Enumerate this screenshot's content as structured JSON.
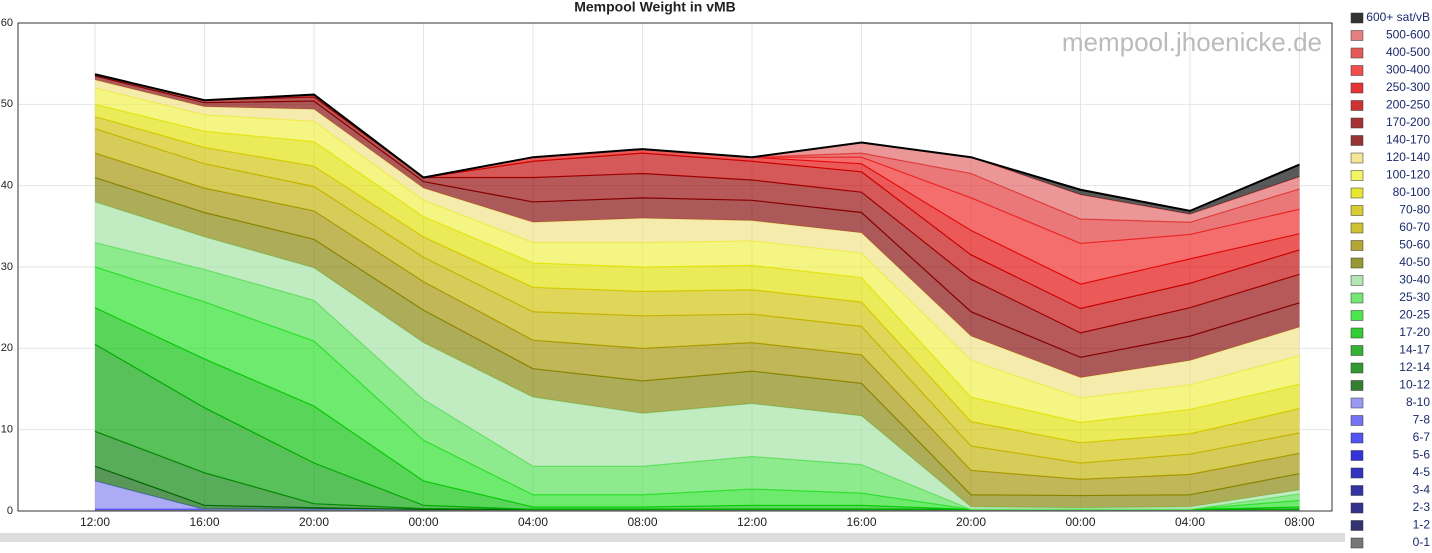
{
  "chart_data": {
    "type": "stacked-area",
    "title": "Mempool Weight in vMB",
    "watermark": "mempool.jhoenicke.de",
    "categories": [
      "12:00",
      "16:00",
      "20:00",
      "00:00",
      "04:00",
      "08:00",
      "12:00",
      "16:00",
      "20:00",
      "00:00",
      "04:00",
      "08:00"
    ],
    "ylim": [
      0,
      60
    ],
    "yticks": [
      0,
      10,
      20,
      30,
      40,
      50,
      60
    ],
    "grid": true,
    "legend": "right",
    "series": [
      {
        "name": "0-1",
        "color": "#555555",
        "values": [
          0.2,
          0.2,
          0.2,
          0.2,
          0.2,
          0.2,
          0.2,
          0.2,
          0.2,
          0.2,
          0.2,
          0.2
        ]
      },
      {
        "name": "1-2",
        "color": "#000050",
        "values": [
          0,
          0,
          0,
          0,
          0,
          0,
          0,
          0,
          0,
          0,
          0,
          0
        ]
      },
      {
        "name": "2-3",
        "color": "#000070",
        "values": [
          0,
          0,
          0,
          0,
          0,
          0,
          0,
          0,
          0,
          0,
          0,
          0
        ]
      },
      {
        "name": "3-4",
        "color": "#000090",
        "values": [
          0,
          0,
          0,
          0,
          0,
          0,
          0,
          0,
          0,
          0,
          0,
          0
        ]
      },
      {
        "name": "4-5",
        "color": "#0000b0",
        "values": [
          0,
          0,
          0,
          0,
          0,
          0,
          0,
          0,
          0,
          0,
          0,
          0
        ]
      },
      {
        "name": "5-6",
        "color": "#0000d0",
        "values": [
          0,
          0,
          0,
          0,
          0,
          0,
          0,
          0,
          0,
          0,
          0,
          0
        ]
      },
      {
        "name": "6-7",
        "color": "#2828f0",
        "values": [
          0,
          0,
          0,
          0,
          0,
          0,
          0,
          0,
          0,
          0,
          0,
          0
        ]
      },
      {
        "name": "7-8",
        "color": "#5050f0",
        "values": [
          0,
          0,
          0,
          0,
          0,
          0,
          0,
          0,
          0,
          0,
          0,
          0
        ]
      },
      {
        "name": "8-10",
        "color": "#8080f0",
        "values": [
          3.5,
          0,
          0,
          0,
          0,
          0,
          0,
          0,
          0,
          0,
          0,
          0
        ]
      },
      {
        "name": "10-12",
        "color": "#006000",
        "values": [
          1.8,
          0.5,
          0.2,
          0,
          0,
          0,
          0,
          0,
          0,
          0,
          0,
          0
        ]
      },
      {
        "name": "12-14",
        "color": "#008000",
        "values": [
          4.3,
          4,
          0.5,
          0.1,
          0,
          0,
          0,
          0,
          0,
          0,
          0,
          0
        ]
      },
      {
        "name": "14-17",
        "color": "#00a000",
        "values": [
          10.7,
          8,
          5,
          0.4,
          0,
          0,
          0,
          0,
          0,
          0,
          0,
          0
        ]
      },
      {
        "name": "17-20",
        "color": "#00c000",
        "values": [
          4.5,
          6,
          7,
          3,
          0.3,
          0.3,
          0.5,
          0.5,
          0,
          0,
          0,
          0.3
        ]
      },
      {
        "name": "20-25",
        "color": "#20e020",
        "values": [
          5,
          7,
          8,
          5,
          1.5,
          1.5,
          2,
          1.5,
          0,
          0,
          0,
          0.8
        ]
      },
      {
        "name": "25-30",
        "color": "#50e050",
        "values": [
          3,
          4,
          5,
          5,
          3.5,
          3.5,
          4,
          3.5,
          0,
          0,
          0,
          0.8
        ]
      },
      {
        "name": "30-40",
        "color": "#a0e0a0",
        "values": [
          5,
          4,
          4,
          7,
          8.5,
          6.5,
          6.5,
          6,
          0.3,
          0.2,
          0.3,
          0.5
        ]
      },
      {
        "name": "40-50",
        "color": "#808000",
        "values": [
          3,
          3,
          3.5,
          4,
          3.5,
          4,
          4,
          4,
          1.5,
          1.5,
          1.5,
          2
        ]
      },
      {
        "name": "50-60",
        "color": "#a09000",
        "values": [
          3,
          3,
          3.5,
          3.5,
          3.5,
          4,
          3.5,
          3.5,
          3,
          2,
          2.5,
          2.5
        ]
      },
      {
        "name": "60-70",
        "color": "#c0b000",
        "values": [
          3,
          3,
          3,
          3,
          3.5,
          4,
          3.5,
          3.5,
          3,
          2,
          2.5,
          2.5
        ]
      },
      {
        "name": "70-80",
        "color": "#d0c000",
        "values": [
          1.5,
          2,
          2.5,
          2.5,
          3,
          3,
          3,
          3,
          3,
          2.5,
          2.5,
          3
        ]
      },
      {
        "name": "80-100",
        "color": "#e0e000",
        "values": [
          1.5,
          2,
          3,
          2.5,
          3,
          3,
          3,
          3,
          3,
          2.5,
          3,
          3
        ]
      },
      {
        "name": "100-120",
        "color": "#f0f040",
        "values": [
          2,
          2,
          2.5,
          2,
          2.5,
          3,
          3,
          3,
          4.5,
          3,
          3,
          3.5
        ]
      },
      {
        "name": "120-140",
        "color": "#f0e080",
        "values": [
          1,
          1,
          1.5,
          1.5,
          2.5,
          3,
          2.5,
          2.5,
          3,
          2.5,
          3,
          3.5
        ]
      },
      {
        "name": "140-170",
        "color": "#800000",
        "values": [
          0.5,
          0.5,
          1,
          0.8,
          2.5,
          2.5,
          2.5,
          2.5,
          3,
          2.5,
          3,
          3
        ]
      },
      {
        "name": "170-200",
        "color": "#900000",
        "values": [
          0.2,
          0.3,
          0.5,
          0.5,
          3,
          3,
          2.5,
          2.5,
          4,
          3,
          3.5,
          3.5
        ]
      },
      {
        "name": "200-250",
        "color": "#c00000",
        "values": [
          0,
          0,
          0.3,
          0,
          2,
          2.5,
          2.3,
          2.5,
          3,
          3,
          3,
          3
        ]
      },
      {
        "name": "250-300",
        "color": "#e00000",
        "values": [
          0,
          0,
          0,
          0,
          0.5,
          0.5,
          0.5,
          1,
          3,
          3,
          3,
          2
        ]
      },
      {
        "name": "300-400",
        "color": "#f02020",
        "values": [
          0,
          0,
          0,
          0,
          0,
          0,
          0,
          0.8,
          4,
          5,
          3,
          3
        ]
      },
      {
        "name": "400-500",
        "color": "#e03030",
        "values": [
          0,
          0,
          0,
          0,
          0,
          0,
          0,
          0.5,
          3,
          3,
          1.5,
          2.5
        ]
      },
      {
        "name": "500-600",
        "color": "#e06060",
        "values": [
          0,
          0,
          0,
          0,
          0,
          0,
          0,
          1.3,
          2,
          3,
          1,
          1.5
        ]
      },
      {
        "name": "600+ sat/vB",
        "color": "#000000",
        "values": [
          0,
          0,
          0,
          0,
          0,
          0,
          0,
          0,
          0,
          0.6,
          0.4,
          1.5
        ]
      }
    ]
  }
}
